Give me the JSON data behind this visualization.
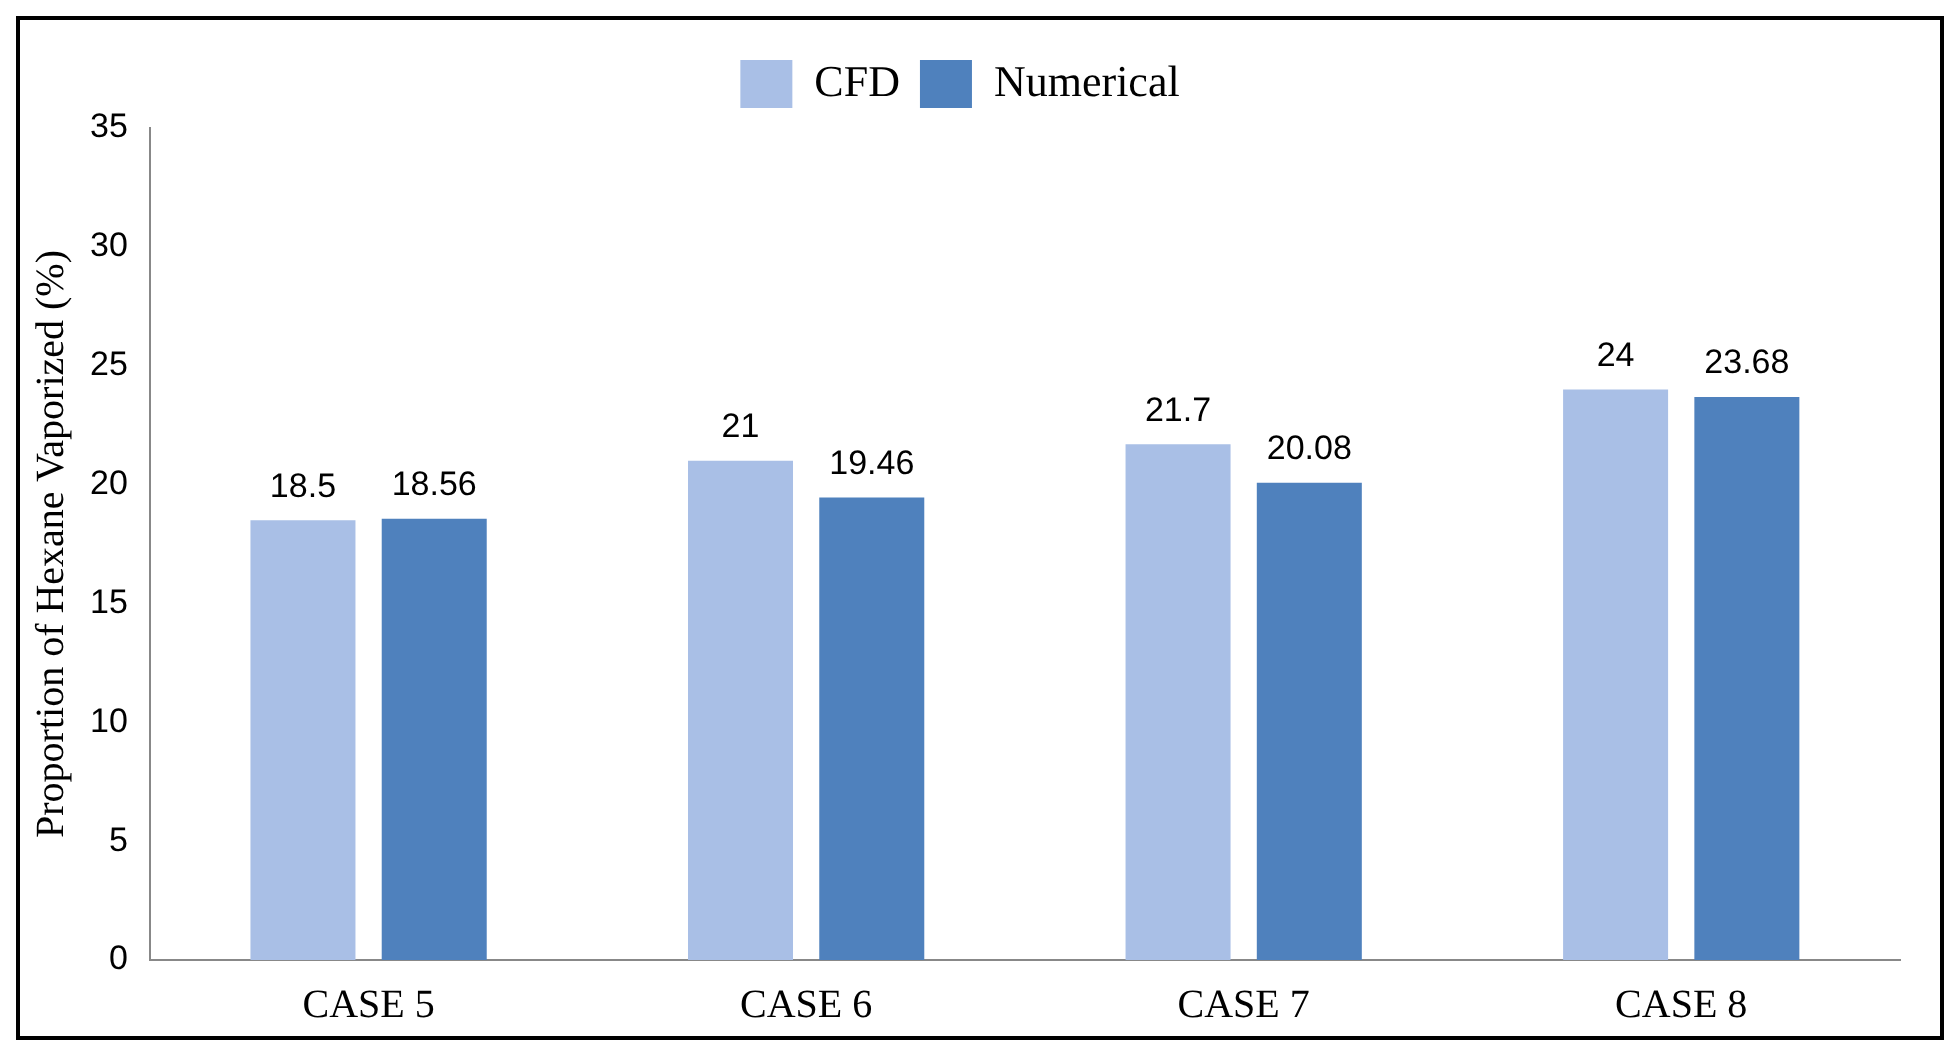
{
  "chart_data": {
    "type": "bar",
    "ylabel": "Proportion of Hexane Vaporized (%)",
    "categories": [
      "CASE 5",
      "CASE 6",
      "CASE 7",
      "CASE 8"
    ],
    "series": [
      {
        "name": "CFD",
        "color": "#a9bfe6",
        "values": [
          18.5,
          21,
          21.7,
          24
        ]
      },
      {
        "name": "Numerical",
        "color": "#4f81bd",
        "values": [
          18.56,
          19.46,
          20.08,
          23.68
        ]
      }
    ],
    "ylim": [
      0,
      35
    ],
    "yticks": [
      0,
      5,
      10,
      15,
      20,
      25,
      30,
      35
    ],
    "grid": false,
    "legend": "top",
    "data_labels": true
  }
}
